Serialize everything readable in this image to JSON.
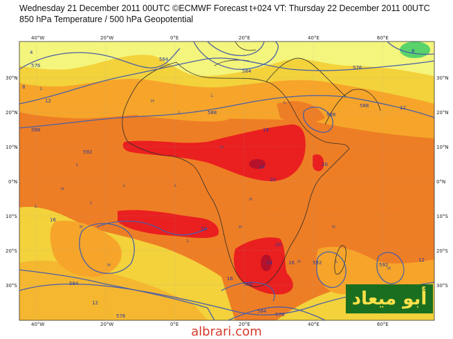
{
  "header": {
    "line1": "Wednesday 21 December 2011 00UTC ©ECMWF Forecast t+024 VT: Thursday 22 December 2011 00UTC",
    "line2": "850 hPa Temperature / 500 hPa Geopotential"
  },
  "axes": {
    "lon_labels": [
      "40°W",
      "20°W",
      "0°E",
      "20°E",
      "40°E",
      "60°E"
    ],
    "lat_labels": [
      "30°N",
      "20°N",
      "10°N",
      "0°N",
      "10°S",
      "20°S",
      "30°S"
    ]
  },
  "contour_labels": [
    "576",
    "584",
    "576",
    "584",
    "588",
    "588",
    "588",
    "588",
    "584",
    "576",
    "576",
    "584",
    "588",
    "592",
    "592",
    "592"
  ],
  "temperature_labels": [
    "4",
    "8",
    "12",
    "16",
    "16",
    "16",
    "20",
    "20",
    "24",
    "20",
    "20",
    "24",
    "16",
    "12",
    "12",
    "12",
    "8"
  ],
  "watermark": "أبو ميعاد",
  "site": "albrari.com",
  "colors": {
    "cold_green": "#59d36a",
    "light_yellow": "#f4f57c",
    "yellow": "#f3d23b",
    "orange_light": "#f6a52a",
    "orange": "#ee7e25",
    "red_orange": "#e9522a",
    "red": "#ea1f1f",
    "dark_red": "#b5112a",
    "contour": "#4a5fa6",
    "coast": "#2b2b2b"
  }
}
